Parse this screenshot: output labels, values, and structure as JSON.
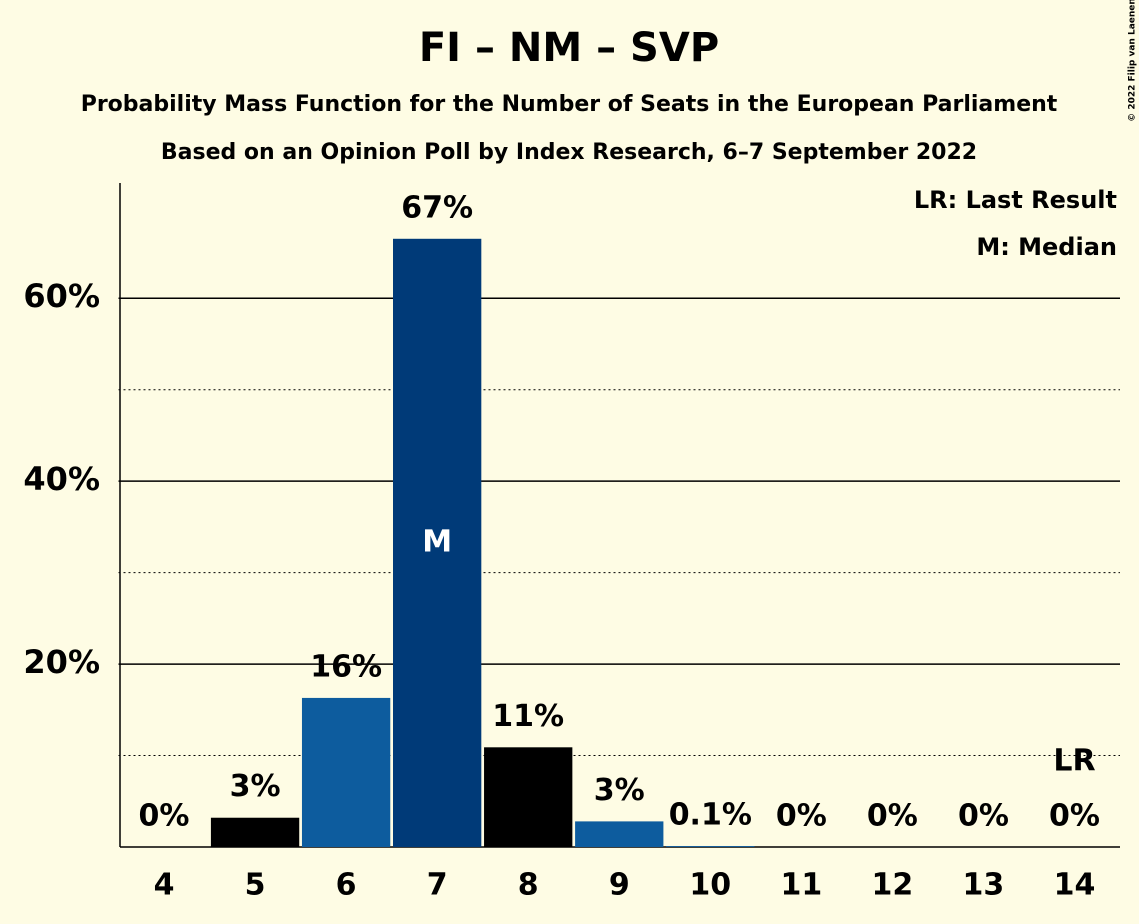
{
  "chart_data": {
    "type": "bar",
    "title": "FI – NM – SVP",
    "subtitle": "Probability Mass Function for the Number of Seats in the European Parliament",
    "subtitle2": "Based on an Opinion Poll by Index Research, 6–7 September 2022",
    "copyright": "© 2022 Filip van Laenen",
    "categories": [
      "4",
      "5",
      "6",
      "7",
      "8",
      "9",
      "10",
      "11",
      "12",
      "13",
      "14"
    ],
    "values": [
      0,
      3.2,
      16.3,
      66.5,
      10.9,
      2.8,
      0.1,
      0,
      0,
      0,
      0
    ],
    "value_labels": [
      "0%",
      "3%",
      "16%",
      "67%",
      "11%",
      "3%",
      "0.1%",
      "0%",
      "0%",
      "0%",
      "0%"
    ],
    "colors": [
      "#000000",
      "#000000",
      "#0d5c9e",
      "#003a78",
      "#000000",
      "#0d5c9e",
      "#0d5c9e",
      "#0d5c9e",
      "#0d5c9e",
      "#0d5c9e",
      "#0d5c9e"
    ],
    "ylim": [
      0,
      72.6
    ],
    "yticks": [
      {
        "value": 20,
        "label": "20%"
      },
      {
        "value": 40,
        "label": "40%"
      },
      {
        "value": 60,
        "label": "60%"
      }
    ],
    "minor_grid": [
      10,
      30,
      50
    ],
    "median": {
      "label": "M",
      "category": "7"
    },
    "last_result": {
      "label": "LR",
      "category": "14"
    },
    "legend": [
      "LR: Last Result",
      "M: Median"
    ]
  }
}
